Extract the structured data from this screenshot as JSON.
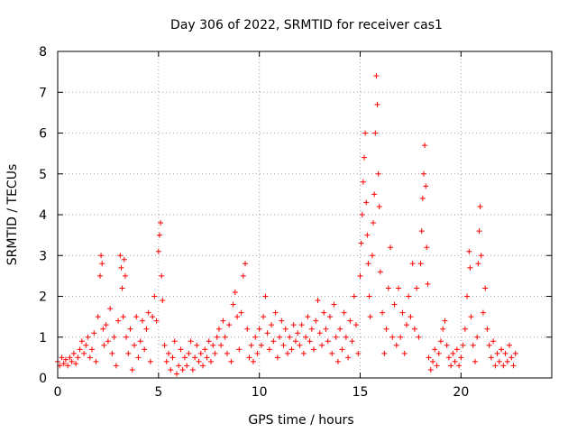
{
  "chart_data": {
    "type": "scatter",
    "title": "Day 306 of 2022, SRMTID for receiver cas1",
    "xlabel": "GPS time / hours",
    "ylabel": "SRMTID / TECUs",
    "xlim": [
      0,
      24.5
    ],
    "ylim": [
      0,
      8
    ],
    "xticks": [
      0,
      5,
      10,
      15,
      20
    ],
    "yticks": [
      0,
      1,
      2,
      3,
      4,
      5,
      6,
      7,
      8
    ],
    "xtick_labels": [
      "0",
      "5",
      "10",
      "15",
      "20"
    ],
    "ytick_labels": [
      "0",
      "1",
      "2",
      "3",
      "4",
      "5",
      "6",
      "7",
      "8"
    ],
    "grid": true,
    "marker": "plus",
    "color": "#ff0000",
    "series": [
      {
        "name": "cas1",
        "points": [
          [
            0.0,
            0.4
          ],
          [
            0.1,
            0.3
          ],
          [
            0.2,
            0.5
          ],
          [
            0.3,
            0.35
          ],
          [
            0.4,
            0.45
          ],
          [
            0.5,
            0.3
          ],
          [
            0.6,
            0.5
          ],
          [
            0.7,
            0.4
          ],
          [
            0.8,
            0.6
          ],
          [
            0.9,
            0.35
          ],
          [
            1.0,
            0.5
          ],
          [
            1.1,
            0.7
          ],
          [
            1.2,
            0.9
          ],
          [
            1.3,
            0.6
          ],
          [
            1.4,
            0.8
          ],
          [
            1.5,
            1.0
          ],
          [
            1.6,
            0.5
          ],
          [
            1.7,
            0.7
          ],
          [
            1.8,
            1.1
          ],
          [
            1.9,
            0.4
          ],
          [
            2.0,
            1.5
          ],
          [
            2.1,
            2.5
          ],
          [
            2.15,
            3.0
          ],
          [
            2.2,
            2.8
          ],
          [
            2.25,
            1.2
          ],
          [
            2.3,
            0.8
          ],
          [
            2.4,
            1.3
          ],
          [
            2.5,
            0.9
          ],
          [
            2.6,
            1.7
          ],
          [
            2.7,
            0.6
          ],
          [
            2.8,
            1.0
          ],
          [
            2.9,
            0.3
          ],
          [
            3.0,
            1.4
          ],
          [
            3.1,
            3.0
          ],
          [
            3.15,
            2.7
          ],
          [
            3.2,
            2.2
          ],
          [
            3.25,
            1.5
          ],
          [
            3.3,
            2.9
          ],
          [
            3.35,
            2.5
          ],
          [
            3.4,
            1.0
          ],
          [
            3.5,
            0.6
          ],
          [
            3.6,
            1.2
          ],
          [
            3.7,
            0.2
          ],
          [
            3.8,
            0.8
          ],
          [
            3.9,
            1.5
          ],
          [
            4.0,
            0.5
          ],
          [
            4.1,
            0.9
          ],
          [
            4.2,
            1.4
          ],
          [
            4.3,
            0.7
          ],
          [
            4.4,
            1.2
          ],
          [
            4.5,
            1.6
          ],
          [
            4.6,
            0.4
          ],
          [
            4.7,
            1.5
          ],
          [
            4.8,
            2.0
          ],
          [
            4.9,
            1.4
          ],
          [
            5.0,
            3.1
          ],
          [
            5.05,
            3.5
          ],
          [
            5.1,
            3.8
          ],
          [
            5.15,
            2.5
          ],
          [
            5.2,
            1.9
          ],
          [
            5.3,
            0.8
          ],
          [
            5.4,
            0.4
          ],
          [
            5.5,
            0.6
          ],
          [
            5.6,
            0.2
          ],
          [
            5.7,
            0.5
          ],
          [
            5.8,
            0.9
          ],
          [
            5.9,
            0.1
          ],
          [
            6.0,
            0.3
          ],
          [
            6.1,
            0.7
          ],
          [
            6.2,
            0.2
          ],
          [
            6.3,
            0.5
          ],
          [
            6.4,
            0.3
          ],
          [
            6.5,
            0.6
          ],
          [
            6.6,
            0.9
          ],
          [
            6.7,
            0.2
          ],
          [
            6.8,
            0.5
          ],
          [
            6.9,
            0.8
          ],
          [
            7.0,
            0.4
          ],
          [
            7.1,
            0.6
          ],
          [
            7.2,
            0.3
          ],
          [
            7.3,
            0.7
          ],
          [
            7.4,
            0.5
          ],
          [
            7.5,
            0.9
          ],
          [
            7.6,
            0.4
          ],
          [
            7.7,
            0.8
          ],
          [
            7.8,
            0.6
          ],
          [
            7.9,
            1.0
          ],
          [
            8.0,
            1.2
          ],
          [
            8.1,
            0.8
          ],
          [
            8.2,
            1.4
          ],
          [
            8.3,
            1.0
          ],
          [
            8.4,
            0.6
          ],
          [
            8.5,
            1.3
          ],
          [
            8.6,
            0.4
          ],
          [
            8.7,
            1.8
          ],
          [
            8.8,
            2.1
          ],
          [
            8.9,
            1.5
          ],
          [
            9.0,
            0.7
          ],
          [
            9.1,
            1.6
          ],
          [
            9.2,
            2.5
          ],
          [
            9.3,
            2.8
          ],
          [
            9.4,
            1.2
          ],
          [
            9.5,
            0.5
          ],
          [
            9.6,
            0.8
          ],
          [
            9.7,
            0.4
          ],
          [
            9.8,
            1.0
          ],
          [
            9.9,
            0.6
          ],
          [
            10.0,
            1.2
          ],
          [
            10.1,
            0.8
          ],
          [
            10.2,
            1.5
          ],
          [
            10.3,
            2.0
          ],
          [
            10.4,
            1.1
          ],
          [
            10.5,
            0.7
          ],
          [
            10.6,
            1.3
          ],
          [
            10.7,
            0.9
          ],
          [
            10.8,
            1.6
          ],
          [
            10.9,
            0.5
          ],
          [
            11.0,
            1.0
          ],
          [
            11.1,
            1.4
          ],
          [
            11.2,
            0.8
          ],
          [
            11.3,
            1.2
          ],
          [
            11.4,
            0.6
          ],
          [
            11.5,
            1.0
          ],
          [
            11.6,
            0.7
          ],
          [
            11.7,
            1.3
          ],
          [
            11.8,
            0.9
          ],
          [
            11.9,
            1.1
          ],
          [
            12.0,
            0.8
          ],
          [
            12.1,
            1.3
          ],
          [
            12.2,
            0.6
          ],
          [
            12.3,
            1.0
          ],
          [
            12.4,
            1.5
          ],
          [
            12.5,
            0.9
          ],
          [
            12.6,
            1.2
          ],
          [
            12.7,
            0.7
          ],
          [
            12.8,
            1.4
          ],
          [
            12.9,
            1.9
          ],
          [
            13.0,
            1.1
          ],
          [
            13.1,
            0.8
          ],
          [
            13.2,
            1.6
          ],
          [
            13.3,
            1.2
          ],
          [
            13.4,
            0.9
          ],
          [
            13.5,
            1.5
          ],
          [
            13.6,
            0.6
          ],
          [
            13.7,
            1.8
          ],
          [
            13.8,
            1.0
          ],
          [
            13.9,
            0.4
          ],
          [
            14.0,
            1.2
          ],
          [
            14.1,
            0.7
          ],
          [
            14.2,
            1.6
          ],
          [
            14.3,
            1.0
          ],
          [
            14.4,
            0.5
          ],
          [
            14.5,
            1.4
          ],
          [
            14.6,
            0.9
          ],
          [
            14.7,
            2.0
          ],
          [
            14.8,
            1.3
          ],
          [
            14.9,
            0.6
          ],
          [
            15.0,
            2.5
          ],
          [
            15.05,
            3.3
          ],
          [
            15.1,
            4.0
          ],
          [
            15.15,
            4.8
          ],
          [
            15.2,
            5.4
          ],
          [
            15.25,
            6.0
          ],
          [
            15.3,
            4.3
          ],
          [
            15.35,
            3.5
          ],
          [
            15.4,
            2.8
          ],
          [
            15.45,
            2.0
          ],
          [
            15.5,
            1.5
          ],
          [
            15.6,
            3.0
          ],
          [
            15.65,
            3.8
          ],
          [
            15.7,
            4.5
          ],
          [
            15.75,
            6.0
          ],
          [
            15.8,
            7.4
          ],
          [
            15.85,
            6.7
          ],
          [
            15.9,
            5.0
          ],
          [
            15.95,
            4.2
          ],
          [
            16.0,
            2.6
          ],
          [
            16.1,
            1.6
          ],
          [
            16.2,
            0.6
          ],
          [
            16.3,
            1.2
          ],
          [
            16.4,
            2.2
          ],
          [
            16.5,
            3.2
          ],
          [
            16.6,
            1.0
          ],
          [
            16.7,
            1.8
          ],
          [
            16.8,
            0.8
          ],
          [
            16.9,
            2.2
          ],
          [
            17.0,
            1.0
          ],
          [
            17.1,
            1.6
          ],
          [
            17.2,
            0.6
          ],
          [
            17.3,
            1.3
          ],
          [
            17.4,
            2.0
          ],
          [
            17.5,
            1.5
          ],
          [
            17.6,
            2.8
          ],
          [
            17.7,
            1.2
          ],
          [
            17.8,
            2.2
          ],
          [
            17.9,
            1.0
          ],
          [
            18.0,
            2.8
          ],
          [
            18.05,
            3.6
          ],
          [
            18.1,
            4.4
          ],
          [
            18.15,
            5.0
          ],
          [
            18.2,
            5.7
          ],
          [
            18.25,
            4.7
          ],
          [
            18.3,
            3.2
          ],
          [
            18.35,
            2.3
          ],
          [
            18.4,
            0.5
          ],
          [
            18.5,
            0.2
          ],
          [
            18.6,
            0.4
          ],
          [
            18.7,
            0.7
          ],
          [
            18.8,
            0.3
          ],
          [
            18.9,
            0.6
          ],
          [
            19.0,
            0.9
          ],
          [
            19.1,
            1.2
          ],
          [
            19.2,
            1.4
          ],
          [
            19.3,
            0.8
          ],
          [
            19.4,
            0.5
          ],
          [
            19.5,
            0.3
          ],
          [
            19.6,
            0.6
          ],
          [
            19.7,
            0.4
          ],
          [
            19.8,
            0.7
          ],
          [
            19.9,
            0.3
          ],
          [
            20.0,
            0.5
          ],
          [
            20.1,
            0.8
          ],
          [
            20.2,
            1.2
          ],
          [
            20.3,
            2.0
          ],
          [
            20.4,
            3.1
          ],
          [
            20.45,
            2.7
          ],
          [
            20.5,
            1.5
          ],
          [
            20.6,
            0.8
          ],
          [
            20.7,
            0.4
          ],
          [
            20.8,
            1.0
          ],
          [
            20.85,
            2.8
          ],
          [
            20.9,
            3.6
          ],
          [
            20.95,
            4.2
          ],
          [
            21.0,
            3.0
          ],
          [
            21.1,
            1.6
          ],
          [
            21.2,
            2.2
          ],
          [
            21.3,
            1.2
          ],
          [
            21.4,
            0.8
          ],
          [
            21.5,
            0.5
          ],
          [
            21.6,
            0.9
          ],
          [
            21.7,
            0.3
          ],
          [
            21.8,
            0.6
          ],
          [
            21.9,
            0.4
          ],
          [
            22.0,
            0.7
          ],
          [
            22.1,
            0.3
          ],
          [
            22.2,
            0.6
          ],
          [
            22.3,
            0.4
          ],
          [
            22.4,
            0.8
          ],
          [
            22.5,
            0.5
          ],
          [
            22.6,
            0.3
          ],
          [
            22.7,
            0.6
          ]
        ]
      }
    ]
  }
}
